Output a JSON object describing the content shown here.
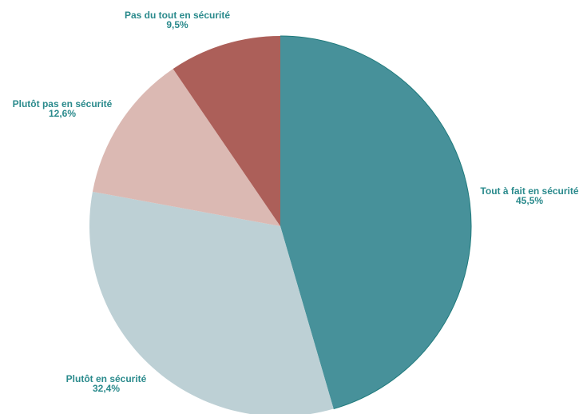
{
  "chart_data": {
    "type": "pie",
    "start_angle_deg": 0,
    "direction": "clockwise",
    "slices": [
      {
        "label": "Tout à fait en sécurité",
        "value": 45.5,
        "value_label": "45,5%",
        "color": "#47919a"
      },
      {
        "label": "Plutôt en sécurité",
        "value": 32.4,
        "value_label": "32,4%",
        "color": "#bdd0d5"
      },
      {
        "label": "Plutôt pas en sécurité",
        "value": 12.6,
        "value_label": "12,6%",
        "color": "#dbb9b3"
      },
      {
        "label": "Pas du tout en sécurité",
        "value": 9.5,
        "value_label": "9,5%",
        "color": "#ac5f59"
      }
    ],
    "label_color": "#2a8a8c",
    "outline_color": "#1f7a7c"
  }
}
